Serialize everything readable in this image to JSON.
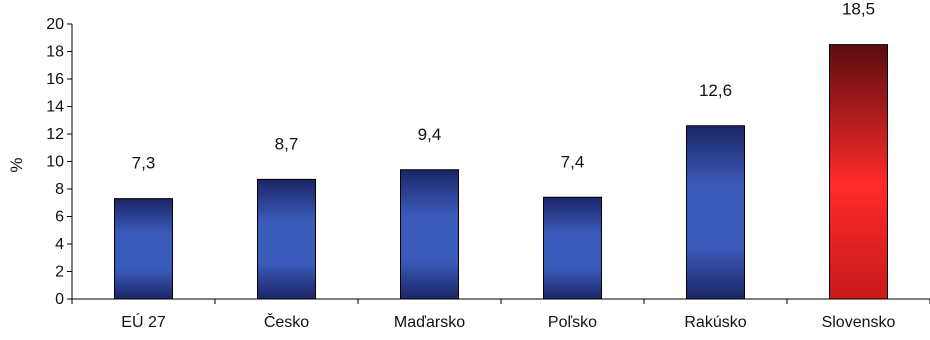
{
  "chart_data": {
    "type": "bar",
    "ylabel": "%",
    "ylim": [
      0,
      20
    ],
    "yticks": [
      0,
      2,
      4,
      6,
      8,
      10,
      12,
      14,
      16,
      18,
      20
    ],
    "grid": false,
    "categories": [
      "EÚ 27",
      "Česko",
      "Maďarsko",
      "Poľsko",
      "Rakúsko",
      "Slovensko"
    ],
    "values": [
      7.3,
      8.7,
      9.4,
      7.4,
      12.6,
      18.5
    ],
    "data_labels": [
      "7,3",
      "8,7",
      "9,4",
      "7,4",
      "12,6",
      "18,5"
    ],
    "highlight_category": "Slovensko"
  },
  "colors": {
    "default_bar_dark": "#1a2466",
    "default_bar_light": "#3a57b4",
    "highlight_bar_dark": "#5a0d10",
    "highlight_bar_light": "#ff2a2a",
    "axis": "#000000"
  }
}
